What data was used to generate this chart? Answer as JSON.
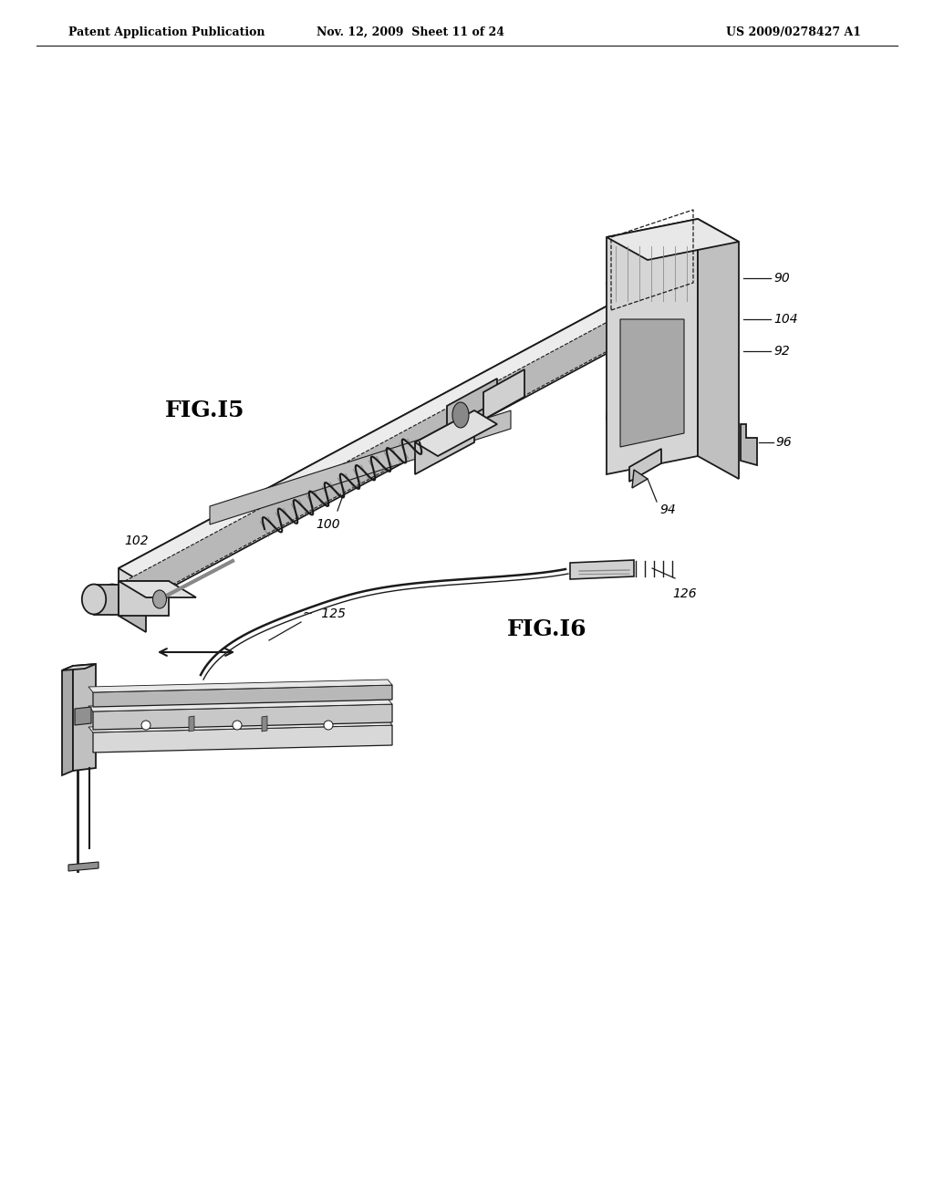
{
  "background_color": "#ffffff",
  "header_left": "Patent Application Publication",
  "header_center": "Nov. 12, 2009  Sheet 11 of 24",
  "header_right": "US 2009/0278427 A1",
  "fig15_label": "FIG.I5",
  "fig16_label": "FIG.I6",
  "line_color": "#1a1a1a",
  "text_color": "#000000",
  "gray_light": "#e8e8e8",
  "gray_mid": "#c0c0c0",
  "gray_dark": "#909090"
}
